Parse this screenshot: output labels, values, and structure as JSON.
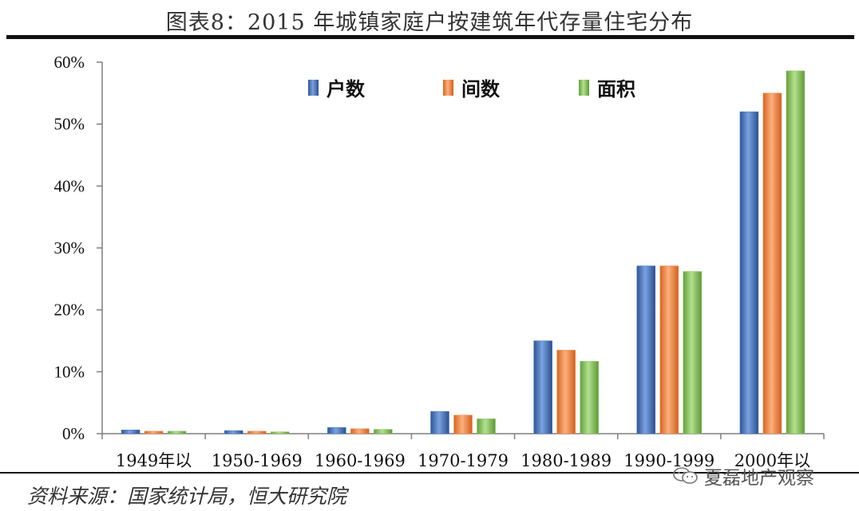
{
  "title": "图表8：2015 年城镇家庭户按建筑年代存量住宅分布",
  "source": "资料来源：国家统计局，恒大研究院",
  "watermark": "夏磊地产观察",
  "chart_data": {
    "type": "bar",
    "title": "图表8：2015 年城镇家庭户按建筑年代存量住宅分布",
    "categories": [
      "1949年以",
      "1950-1969",
      "1960-1969",
      "1970-1979",
      "1980-1989",
      "1990-1999",
      "2000年以"
    ],
    "series": [
      {
        "name": "户数",
        "values": [
          0.6,
          0.5,
          1.0,
          3.6,
          15.0,
          27.1,
          52.0
        ]
      },
      {
        "name": "间数",
        "values": [
          0.4,
          0.4,
          0.8,
          3.0,
          13.5,
          27.1,
          55.0
        ]
      },
      {
        "name": "面积",
        "values": [
          0.4,
          0.3,
          0.7,
          2.4,
          11.7,
          26.2,
          58.6
        ]
      }
    ],
    "y_ticks": [
      "0%",
      "10%",
      "20%",
      "30%",
      "40%",
      "50%",
      "60%"
    ],
    "ylim": [
      0,
      60
    ],
    "y_unit": "%",
    "grid": false,
    "legend_position": "top",
    "colors": [
      "#4a78c2",
      "#f08a4b",
      "#8dc465"
    ]
  }
}
